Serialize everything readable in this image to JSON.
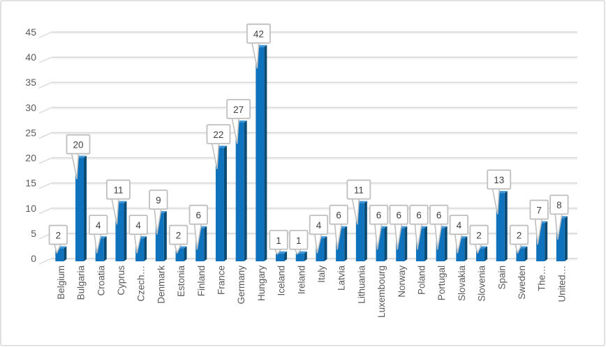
{
  "chart_data": {
    "type": "bar",
    "style": "excel-3d-clustered-column",
    "categories": [
      "Belgium",
      "Bulgaria",
      "Croatia",
      "Cyprus",
      "Czech…",
      "Denmark",
      "Estonia",
      "Finland",
      "France",
      "Germany",
      "Hungary",
      "Iceland",
      "Ireland",
      "Italy",
      "Latvia",
      "Lithuania",
      "Luxembourg",
      "Norway",
      "Poland",
      "Portugal",
      "Slovakia",
      "Slovenia",
      "Spain",
      "Sweden",
      "The…",
      "United…"
    ],
    "values": [
      2,
      20,
      4,
      11,
      4,
      9,
      2,
      6,
      22,
      27,
      42,
      1,
      1,
      4,
      6,
      11,
      6,
      6,
      6,
      6,
      4,
      2,
      13,
      2,
      7,
      8
    ],
    "data_labels": [
      2,
      20,
      4,
      11,
      4,
      9,
      2,
      6,
      22,
      27,
      42,
      1,
      1,
      4,
      6,
      11,
      6,
      6,
      6,
      6,
      4,
      2,
      13,
      2,
      7,
      8
    ],
    "data_label_style": "callout-box-with-leader",
    "xlabel": "",
    "ylabel": "",
    "y_ticks": [
      0,
      5,
      10,
      15,
      20,
      25,
      30,
      35,
      40,
      45
    ],
    "ylim": [
      0,
      45
    ],
    "grid": true,
    "legend": "none",
    "x_label_rotation_degrees": -90,
    "colors": {
      "bar_front": "#0E72BC",
      "bar_side": "#0B4A73",
      "bar_top": "#3D94D6",
      "gridline": "#D9D9D9",
      "gridline_shadow": "#F1F1F1",
      "axis_text": "#595959",
      "callout_text": "#404040",
      "callout_border": "#BFBFBF",
      "callout_fill": "#FFFFFF",
      "frame_border": "#D9D9D9",
      "background": "#FFFFFF"
    }
  }
}
